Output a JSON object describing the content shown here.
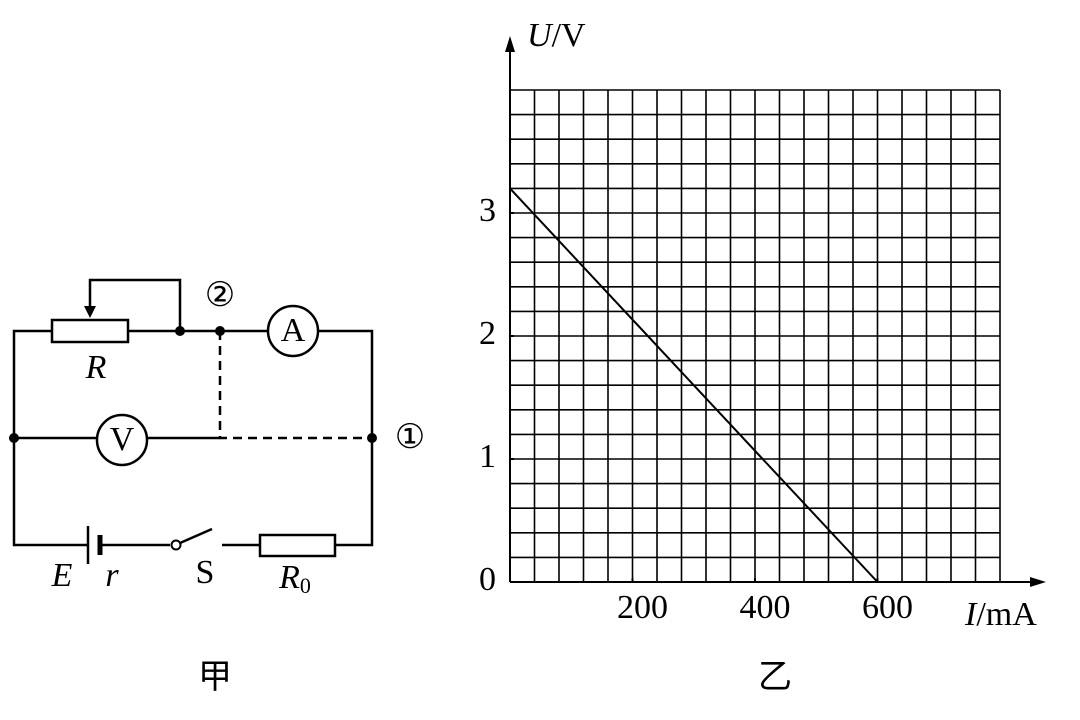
{
  "circuit": {
    "labels": {
      "R": "R",
      "A": "A",
      "V": "V",
      "E": "E",
      "r": "r",
      "S": "S",
      "R0": "R",
      "R0_sub": "0",
      "point1": "①",
      "point2": "②"
    },
    "caption": "甲"
  },
  "chart_data": {
    "type": "line",
    "caption": "乙",
    "x_label": {
      "symbol": "I",
      "unit": "/mA"
    },
    "y_label": {
      "symbol": "U",
      "unit": "/V"
    },
    "x": [
      0,
      600
    ],
    "series": [
      {
        "color": "#000000",
        "values": [
          3.2,
          0
        ]
      }
    ],
    "xlim": [
      0,
      800
    ],
    "ylim": [
      0,
      4
    ],
    "xticks": [
      200,
      400,
      600
    ],
    "yticks": [
      0,
      1,
      2,
      3
    ],
    "grid": true
  }
}
